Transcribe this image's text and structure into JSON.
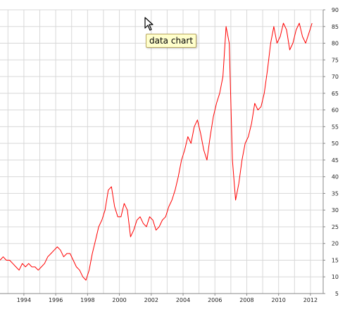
{
  "tooltip": {
    "text": "data chart"
  },
  "icons": {
    "cursor": "mouse-pointer-icon"
  },
  "chart_data": {
    "type": "line",
    "title": "",
    "xlabel": "",
    "ylabel": "",
    "xlim": [
      1992.5,
      2012.8
    ],
    "ylim": [
      5,
      90
    ],
    "x_ticks": [
      1994,
      1996,
      1998,
      2000,
      2002,
      2004,
      2006,
      2008,
      2010,
      2012
    ],
    "y_ticks": [
      5,
      10,
      15,
      20,
      25,
      30,
      35,
      40,
      45,
      50,
      55,
      60,
      65,
      70,
      75,
      80,
      85,
      90
    ],
    "y_axis_position": "right",
    "grid": true,
    "color": "#ff0000",
    "series": [
      {
        "x": [
          1992.5,
          1992.7,
          1992.9,
          1993.1,
          1993.3,
          1993.5,
          1993.7,
          1993.9,
          1994.1,
          1994.3,
          1994.5,
          1994.7,
          1994.9,
          1995.1,
          1995.3,
          1995.5,
          1995.7,
          1995.9,
          1996.1,
          1996.3,
          1996.5,
          1996.7,
          1996.9,
          1997.1,
          1997.3,
          1997.5,
          1997.7,
          1997.9,
          1998.1,
          1998.3,
          1998.5,
          1998.7,
          1998.9,
          1999.1,
          1999.3,
          1999.5,
          1999.7,
          1999.9,
          2000.1,
          2000.3,
          2000.5,
          2000.7,
          2000.9,
          2001.1,
          2001.3,
          2001.5,
          2001.7,
          2001.9,
          2002.1,
          2002.3,
          2002.5,
          2002.7,
          2002.9,
          2003.1,
          2003.3,
          2003.5,
          2003.7,
          2003.9,
          2004.1,
          2004.3,
          2004.5,
          2004.7,
          2004.9,
          2005.1,
          2005.3,
          2005.5,
          2005.7,
          2005.9,
          2006.1,
          2006.3,
          2006.5,
          2006.7,
          2006.9,
          2007.1,
          2007.3,
          2007.5,
          2007.7,
          2007.9,
          2008.1,
          2008.3,
          2008.5,
          2008.7,
          2008.9,
          2009.1,
          2009.3,
          2009.5,
          2009.7,
          2009.9,
          2010.1,
          2010.3,
          2010.5,
          2010.7,
          2010.9,
          2011.1,
          2011.3,
          2011.5,
          2011.7,
          2011.9,
          2012.1
        ],
        "y": [
          15,
          16,
          15,
          15,
          14,
          13,
          12,
          14,
          13,
          14,
          13,
          13,
          12,
          13,
          14,
          16,
          17,
          18,
          19,
          18,
          16,
          17,
          17,
          15,
          13,
          12,
          10,
          9,
          12,
          17,
          21,
          25,
          27,
          30,
          36,
          37,
          31,
          28,
          28,
          32,
          30,
          22,
          24,
          27,
          28,
          26,
          25,
          28,
          27,
          24,
          25,
          27,
          28,
          31,
          33,
          36,
          40,
          45,
          48,
          52,
          50,
          55,
          57,
          53,
          48,
          45,
          52,
          58,
          62,
          65,
          70,
          85,
          80,
          45,
          33,
          38,
          45,
          50,
          52,
          56,
          62,
          60,
          61,
          65,
          72,
          80,
          85,
          80,
          82,
          86,
          84,
          78,
          80,
          84,
          86,
          82,
          80,
          83,
          86
        ]
      }
    ]
  }
}
